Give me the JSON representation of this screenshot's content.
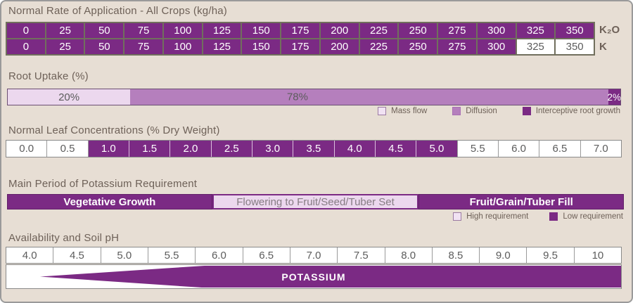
{
  "palette": {
    "dark_purple": "#7b2a84",
    "medium_purple": "#b57fbd",
    "light_pink": "#ecd8ee",
    "background_beige": "#e7ded4",
    "title_text": "#6e6158",
    "cell_text": "#5c5c5c",
    "table_border_olive": "#716f5d"
  },
  "application": {
    "title": "Normal Rate of Application - All Crops (kg/ha)",
    "values": [
      "0",
      "25",
      "50",
      "75",
      "100",
      "125",
      "150",
      "175",
      "200",
      "225",
      "250",
      "275",
      "300",
      "325",
      "350"
    ],
    "rows": [
      {
        "label": "K₂O",
        "purple_count": 15
      },
      {
        "label": "K",
        "purple_count": 13
      }
    ]
  },
  "root_uptake": {
    "title": "Root Uptake (%)",
    "segments": [
      {
        "label": "20%",
        "pct": 20,
        "style": "light"
      },
      {
        "label": "78%",
        "pct": 78,
        "style": "medium"
      },
      {
        "label": "2%",
        "pct": 2,
        "style": "dark"
      }
    ],
    "legend": [
      {
        "label": "Mass flow",
        "style": "light"
      },
      {
        "label": "Diffusion",
        "style": "medium"
      },
      {
        "label": "Interceptive root growth",
        "style": "dark"
      }
    ]
  },
  "leaf": {
    "title": "Normal Leaf Concentrations (% Dry Weight)",
    "values": [
      "0.0",
      "0.5",
      "1.0",
      "1.5",
      "2.0",
      "2.5",
      "3.0",
      "3.5",
      "4.0",
      "4.5",
      "5.0",
      "5.5",
      "6.0",
      "6.5",
      "7.0"
    ],
    "purple_from": 2,
    "purple_to": 10
  },
  "period": {
    "title": "Main Period of Potassium Requirement",
    "segments": [
      {
        "label": "Vegetative Growth",
        "style": "dark"
      },
      {
        "label": "Flowering to Fruit/Seed/Tuber Set",
        "style": "light"
      },
      {
        "label": "Fruit/Grain/Tuber Fill",
        "style": "dark"
      }
    ],
    "legend": [
      {
        "label": "High requirement",
        "style": "light"
      },
      {
        "label": "Low requirement",
        "style": "dark"
      }
    ]
  },
  "ph": {
    "title": "Availability and Soil pH",
    "values": [
      "4.0",
      "4.5",
      "5.0",
      "5.5",
      "6.0",
      "6.5",
      "7.0",
      "7.5",
      "8.0",
      "8.5",
      "9.0",
      "9.5",
      "10"
    ],
    "wedge_label": "POTASSIUM"
  },
  "chart_data": [
    {
      "type": "table",
      "title": "Normal Rate of Application - All Crops (kg/ha)",
      "categories": [
        0,
        25,
        50,
        75,
        100,
        125,
        150,
        175,
        200,
        225,
        250,
        275,
        300,
        325,
        350
      ],
      "series": [
        {
          "name": "K₂O",
          "highlighted_values": [
            0,
            25,
            50,
            75,
            100,
            125,
            150,
            175,
            200,
            225,
            250,
            275,
            300,
            325,
            350
          ]
        },
        {
          "name": "K",
          "highlighted_values": [
            0,
            25,
            50,
            75,
            100,
            125,
            150,
            175,
            200,
            225,
            250,
            275,
            300
          ]
        }
      ],
      "note": "highlighted = purple cells; K row cells 325 and 350 are unhighlighted (white)"
    },
    {
      "type": "bar",
      "title": "Root Uptake (%)",
      "categories": [
        "Mass flow",
        "Diffusion",
        "Interceptive root growth"
      ],
      "values": [
        20,
        78,
        2
      ],
      "unit": "%",
      "layout": "single stacked horizontal bar",
      "legend_position": "below-right"
    },
    {
      "type": "table",
      "title": "Normal Leaf Concentrations (% Dry Weight)",
      "categories": [
        0.0,
        0.5,
        1.0,
        1.5,
        2.0,
        2.5,
        3.0,
        3.5,
        4.0,
        4.5,
        5.0,
        5.5,
        6.0,
        6.5,
        7.0
      ],
      "highlighted_range": [
        1.0,
        5.0
      ],
      "note": "values 1.0 through 5.0 shown purple (normal range)"
    },
    {
      "type": "bar",
      "title": "Main Period of Potassium Requirement",
      "categories": [
        "Vegetative Growth",
        "Flowering to Fruit/Seed/Tuber Set",
        "Fruit/Grain/Tuber Fill"
      ],
      "values": [
        "low requirement (dark)",
        "high requirement (light)",
        "low requirement (dark)"
      ],
      "legend": [
        "High requirement",
        "Low requirement"
      ],
      "legend_position": "below-right"
    },
    {
      "type": "area",
      "title": "Availability and Soil pH",
      "x": [
        4.0,
        4.5,
        5.0,
        5.5,
        6.0,
        6.5,
        7.0,
        7.5,
        8.0,
        8.5,
        9.0,
        9.5,
        10
      ],
      "label": "POTASSIUM",
      "shape": "purple wedge: tip near pH 4.4, widens to full band height by ~pH 6.1, stays full through pH 10"
    }
  ]
}
